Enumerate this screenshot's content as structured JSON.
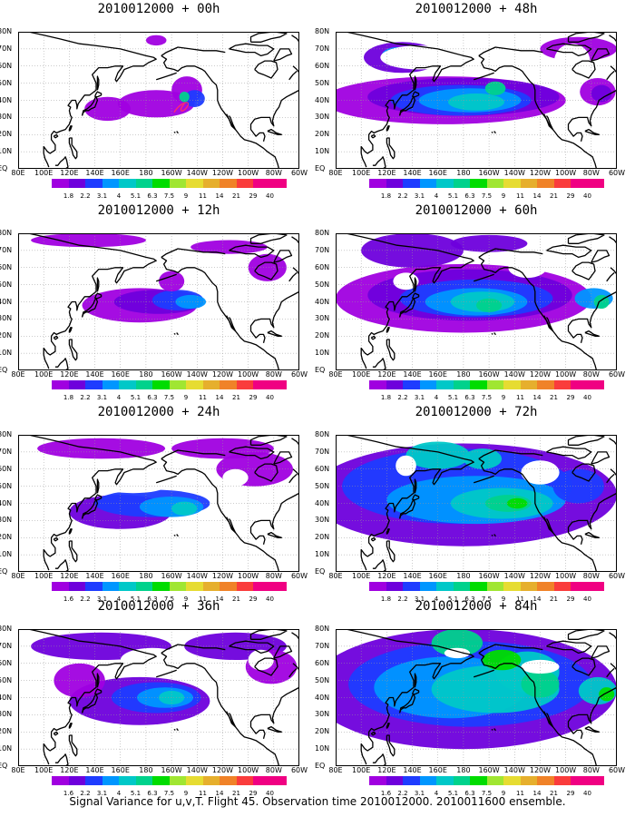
{
  "panels": [
    {
      "title": "2010012000 + 00h"
    },
    {
      "title": "2010012000 + 48h"
    },
    {
      "title": "2010012000 + 12h"
    },
    {
      "title": "2010012000 + 60h"
    },
    {
      "title": "2010012000 + 24h"
    },
    {
      "title": "2010012000 + 72h"
    },
    {
      "title": "2010012000 + 36h"
    },
    {
      "title": "2010012000 + 84h"
    }
  ],
  "lat_labels": [
    "80N",
    "70N",
    "60N",
    "50N",
    "40N",
    "30N",
    "20N",
    "10N",
    "EQ"
  ],
  "lon_labels": [
    "80E",
    "100E",
    "120E",
    "140E",
    "160E",
    "180",
    "160W",
    "140W",
    "120W",
    "100W",
    "80W",
    "60W"
  ],
  "colorbar": {
    "labels": [
      "1.8",
      "2.2",
      "3.1",
      "4",
      "5.1",
      "6.3",
      "7.5",
      "9",
      "11",
      "14",
      "21",
      "29",
      "40"
    ],
    "labels_alt": [
      "1.6",
      "2.2",
      "3.1",
      "4",
      "5.1",
      "6.3",
      "7.5",
      "9",
      "11",
      "14",
      "21",
      "29",
      "40"
    ],
    "colors": [
      "#a000e0",
      "#6e00dc",
      "#1e3cff",
      "#0096ff",
      "#00c8c8",
      "#00d28c",
      "#00dc00",
      "#a0e632",
      "#e6dc32",
      "#e6af2d",
      "#f08228",
      "#fa3c3c",
      "#f00082"
    ]
  },
  "caption": "Signal Variance for u,v,T. Flight 45. Observation time 2010012000. 2010011600 ensemble."
}
